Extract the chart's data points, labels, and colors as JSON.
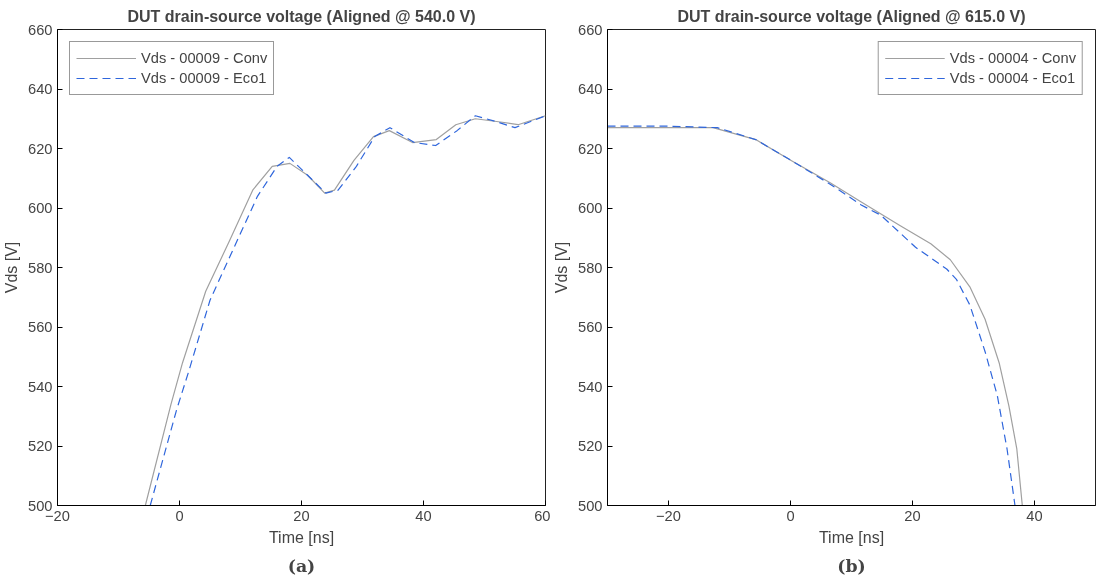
{
  "chart_data": [
    {
      "type": "line",
      "title": "DUT drain-source voltage (Aligned @ 540.0 V)",
      "xlabel": "Time [ns]",
      "ylabel": "Vds [V]",
      "xlim": [
        -20,
        60
      ],
      "xticks": [
        -20,
        0,
        20,
        40,
        60
      ],
      "ylim": [
        500,
        660
      ],
      "yticks": [
        500,
        520,
        540,
        560,
        580,
        600,
        620,
        640,
        660
      ],
      "grid": false,
      "legend": "top left",
      "annotations": [
        "(a)"
      ],
      "series": [
        {
          "name": "Vds - 00009 - Conv",
          "color": "#a0a0a0",
          "line_style": "solid",
          "x": [
            -5.6,
            -1.4,
            0.5,
            4.3,
            8.2,
            12.0,
            15.2,
            18.1,
            21.0,
            23.8,
            25.4,
            28.6,
            31.8,
            34.4,
            38.2,
            42.1,
            45.3,
            48.5,
            52.3,
            55.5,
            60
          ],
          "values": [
            500,
            534,
            548,
            572,
            589,
            606,
            614,
            615,
            611,
            605,
            606,
            616,
            624,
            626,
            622,
            623,
            628,
            630,
            629,
            628,
            631
          ]
        },
        {
          "name": "Vds - 00009 - Eco1",
          "color": "#2f66dc",
          "line_style": "dashed",
          "x": [
            -4.8,
            -0.5,
            1.5,
            5,
            9,
            12.8,
            16,
            18,
            21,
            24,
            26,
            29,
            32,
            34.5,
            38.5,
            42,
            45.5,
            48.5,
            52,
            55,
            60
          ],
          "values": [
            500,
            532,
            545,
            569,
            587,
            604,
            614,
            617,
            611,
            605,
            606,
            614,
            624,
            627,
            622,
            621,
            626,
            631,
            629,
            627,
            631
          ]
        }
      ]
    },
    {
      "type": "line",
      "title": "DUT drain-source voltage (Aligned @ 615.0 V)",
      "xlabel": "Time [ns]",
      "ylabel": "Vds [V]",
      "xlim": [
        -30,
        50
      ],
      "xticks": [
        -20,
        0,
        20,
        40
      ],
      "ylim": [
        500,
        660
      ],
      "yticks": [
        500,
        520,
        540,
        560,
        580,
        600,
        620,
        640,
        660
      ],
      "grid": false,
      "legend": "top right",
      "annotations": [
        "(b)"
      ],
      "series": [
        {
          "name": "Vds - 00004 - Conv",
          "color": "#a0a0a0",
          "line_style": "solid",
          "x": [
            -30,
            -20,
            -12.7,
            -5.7,
            0.1,
            6.5,
            11.6,
            18.0,
            23.0,
            26.2,
            29.4,
            31.9,
            34.2,
            35.8,
            37.1,
            38.0
          ],
          "values": [
            627,
            627,
            627,
            623,
            616,
            608.5,
            602,
            594,
            588,
            582.6,
            573.5,
            562.6,
            548,
            533.5,
            519,
            500
          ]
        },
        {
          "name": "Vds - 00004 - Eco1",
          "color": "#2f66dc",
          "line_style": "dashed",
          "x": [
            -30,
            -20,
            -12,
            -5.7,
            0.1,
            6.5,
            11.6,
            14.8,
            20.5,
            25.6,
            27.2,
            29.4,
            31.9,
            33.9,
            35.5,
            36.8
          ],
          "values": [
            627.5,
            627.5,
            627,
            623,
            616,
            608,
            601,
            597.6,
            586.8,
            579.5,
            576,
            567.4,
            551.7,
            537,
            519,
            500
          ]
        }
      ]
    }
  ]
}
